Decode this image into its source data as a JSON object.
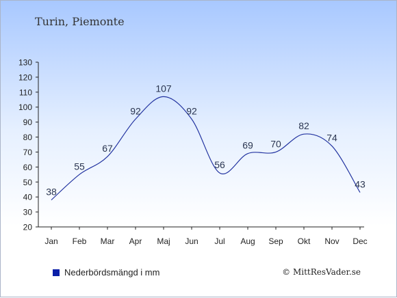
{
  "page_title": "Turin, Piemonte",
  "copyright": "© MittResVader.se",
  "chart_data": {
    "type": "line",
    "categories": [
      "Jan",
      "Feb",
      "Mar",
      "Apr",
      "Maj",
      "Jun",
      "Jul",
      "Aug",
      "Sep",
      "Okt",
      "Nov",
      "Dec"
    ],
    "series": [
      {
        "name": "Nederbördsmängd i mm",
        "values": [
          38,
          55,
          67,
          92,
          107,
          92,
          56,
          69,
          70,
          82,
          74,
          43
        ]
      }
    ],
    "ylim": [
      20,
      130
    ],
    "yticks": [
      20,
      30,
      40,
      50,
      60,
      70,
      80,
      90,
      100,
      110,
      120,
      130
    ],
    "grid": false,
    "legend_position": "bottom-left",
    "line_color": "#2233a0",
    "swatch_color": "#0b1fa8"
  }
}
